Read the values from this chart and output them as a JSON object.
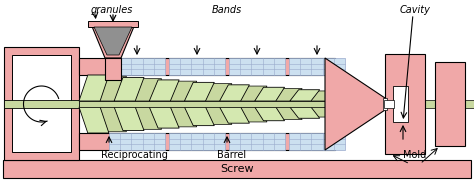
{
  "bg_color": "#ffffff",
  "pink": "#f0a8a8",
  "pink_dark": "#e88888",
  "green_shaft": "#c8d8a0",
  "green_flight": "#d4e8b0",
  "blue_band": "#cce0f0",
  "blue_band_edge": "#99aacc",
  "gray_granule": "#909090",
  "white": "#ffffff",
  "black": "#000000",
  "label_fs": 7,
  "figsize": [
    4.74,
    1.81
  ],
  "dpi": 100,
  "labels": {
    "granules": "granules",
    "bands": "Bands",
    "cavity": "Cavity",
    "reciprocating": "Reciprocating",
    "barrel": "Barrel",
    "mold": "Mold",
    "screw": "Screw"
  }
}
